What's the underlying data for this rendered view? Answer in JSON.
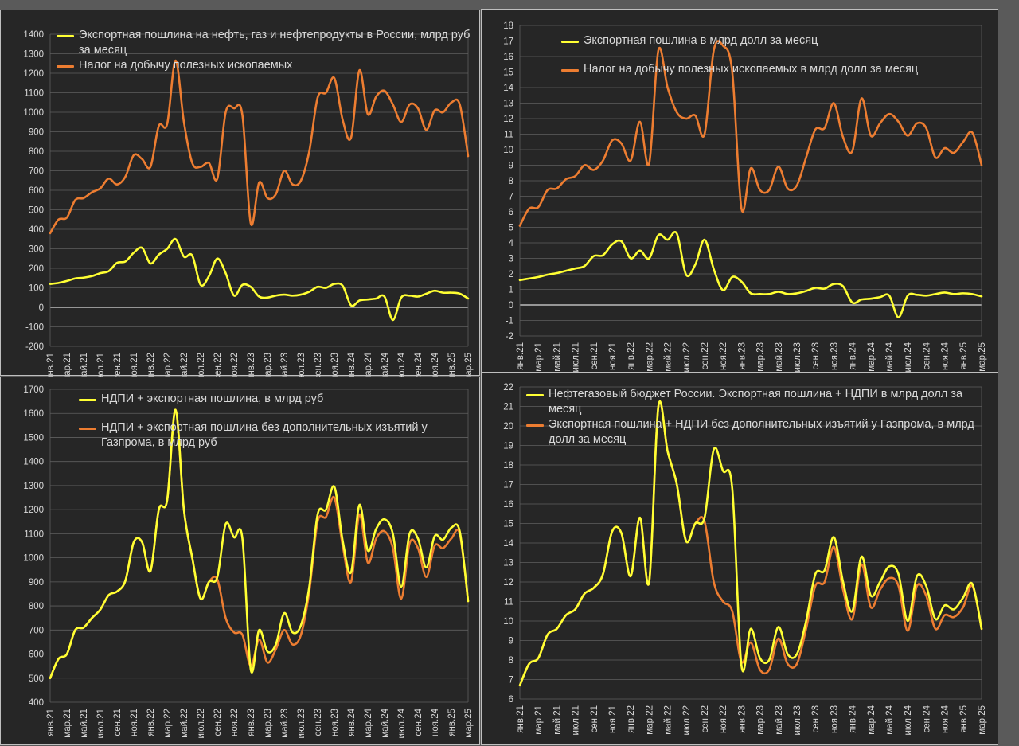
{
  "colors": {
    "yellow": "#ffff33",
    "orange": "#ed7d31",
    "grid": "#5f5f5f",
    "axis_text": "#d9d9d9",
    "zero_line": "#d9d9d9"
  },
  "x_labels": [
    "янв.21",
    "мар.21",
    "май.21",
    "июл.21",
    "сен.21",
    "ноя.21",
    "янв.22",
    "мар.22",
    "май.22",
    "июл.22",
    "сен.22",
    "ноя.22",
    "янв.23",
    "мар.23",
    "май.23",
    "июл.23",
    "сен.23",
    "ноя.23",
    "янв.24",
    "мар.24",
    "май.24",
    "июл.24",
    "сен.24",
    "ноя.24",
    "янв.25",
    "мар.25"
  ],
  "chart_data": [
    {
      "type": "line",
      "ylim": [
        -200,
        1400
      ],
      "ystep": 100,
      "xlabel": "",
      "ylabel": "",
      "x": [
        "янв.21",
        "фев.21",
        "мар.21",
        "апр.21",
        "май.21",
        "июн.21",
        "июл.21",
        "авг.21",
        "сен.21",
        "окт.21",
        "ноя.21",
        "дек.21",
        "янв.22",
        "фев.22",
        "мар.22",
        "апр.22",
        "май.22",
        "июн.22",
        "июл.22",
        "авг.22",
        "сен.22",
        "окт.22",
        "ноя.22",
        "дек.22",
        "янв.23",
        "фев.23",
        "мар.23",
        "апр.23",
        "май.23",
        "июн.23",
        "июл.23",
        "авг.23",
        "сен.23",
        "окт.23",
        "ноя.23",
        "дек.23",
        "янв.24",
        "фев.24",
        "мар.24",
        "апр.24",
        "май.24",
        "июн.24",
        "июл.24",
        "авг.24",
        "сен.24",
        "окт.24",
        "ноя.24",
        "дек.24",
        "янв.25",
        "фев.25",
        "мар.25"
      ],
      "series": [
        {
          "name": "Экспортная пошлина на нефть, газ и нефтепродукты в России, млрд руб за месяц",
          "color": "yellow",
          "values": [
            120,
            125,
            135,
            148,
            152,
            160,
            175,
            185,
            228,
            235,
            280,
            305,
            225,
            270,
            300,
            350,
            260,
            265,
            115,
            160,
            250,
            175,
            60,
            115,
            105,
            55,
            50,
            60,
            65,
            60,
            65,
            80,
            105,
            100,
            120,
            110,
            10,
            35,
            40,
            45,
            55,
            -65,
            50,
            60,
            55,
            70,
            85,
            75,
            75,
            70,
            45
          ]
        },
        {
          "name": "Налог на добычу полезных ископаемых",
          "color": "orange",
          "values": [
            380,
            450,
            460,
            550,
            560,
            590,
            610,
            660,
            630,
            670,
            780,
            760,
            720,
            930,
            940,
            1265,
            950,
            740,
            720,
            740,
            660,
            1000,
            1020,
            985,
            430,
            640,
            560,
            580,
            700,
            630,
            650,
            800,
            1075,
            1100,
            1175,
            960,
            870,
            1215,
            990,
            1080,
            1110,
            1040,
            950,
            1040,
            1020,
            910,
            1010,
            1000,
            1050,
            1040,
            775
          ]
        }
      ]
    },
    {
      "type": "line",
      "ylim": [
        -2,
        18
      ],
      "ystep": 1,
      "xlabel": "",
      "ylabel": "",
      "x": [
        "янв.21",
        "фев.21",
        "мар.21",
        "апр.21",
        "май.21",
        "июн.21",
        "июл.21",
        "авг.21",
        "сен.21",
        "окт.21",
        "ноя.21",
        "дек.21",
        "янв.22",
        "фев.22",
        "мар.22",
        "апр.22",
        "май.22",
        "июн.22",
        "июл.22",
        "авг.22",
        "сен.22",
        "окт.22",
        "ноя.22",
        "дек.22",
        "янв.23",
        "фев.23",
        "мар.23",
        "апр.23",
        "май.23",
        "июн.23",
        "июл.23",
        "авг.23",
        "сен.23",
        "окт.23",
        "ноя.23",
        "дек.23",
        "янв.24",
        "фев.24",
        "мар.24",
        "апр.24",
        "май.24",
        "июн.24",
        "июл.24",
        "авг.24",
        "сен.24",
        "окт.24",
        "ноя.24",
        "дек.24",
        "янв.25",
        "фев.25",
        "мар.25"
      ],
      "series": [
        {
          "name": "Экспортная пошлина в млрд долл за месяц",
          "color": "yellow",
          "values": [
            1.6,
            1.7,
            1.8,
            1.95,
            2.05,
            2.2,
            2.35,
            2.5,
            3.15,
            3.2,
            3.9,
            4.1,
            3.0,
            3.5,
            3.0,
            4.5,
            4.2,
            4.6,
            1.95,
            2.6,
            4.2,
            2.3,
            0.95,
            1.8,
            1.5,
            0.75,
            0.7,
            0.7,
            0.85,
            0.7,
            0.75,
            0.9,
            1.1,
            1.05,
            1.35,
            1.2,
            0.15,
            0.35,
            0.4,
            0.5,
            0.6,
            -0.8,
            0.6,
            0.65,
            0.6,
            0.7,
            0.8,
            0.7,
            0.75,
            0.7,
            0.55
          ]
        },
        {
          "name": "Налог на добычу полезных ископаемых в млрд долл за месяц",
          "color": "orange",
          "values": [
            5.1,
            6.2,
            6.3,
            7.4,
            7.5,
            8.1,
            8.3,
            9.0,
            8.7,
            9.3,
            10.6,
            10.4,
            9.3,
            11.8,
            9.1,
            16.4,
            14.0,
            12.4,
            12.0,
            12.2,
            11.0,
            16.4,
            16.7,
            15.0,
            6.2,
            8.8,
            7.4,
            7.4,
            8.9,
            7.5,
            7.7,
            9.5,
            11.3,
            11.4,
            13.0,
            10.8,
            9.9,
            13.3,
            10.9,
            11.7,
            12.3,
            11.8,
            10.9,
            11.7,
            11.4,
            9.5,
            10.1,
            9.8,
            10.5,
            11.1,
            9.0
          ]
        }
      ]
    },
    {
      "type": "line",
      "ylim": [
        400,
        1700
      ],
      "ystep": 100,
      "xlabel": "",
      "ylabel": "",
      "x": [
        "янв.21",
        "фев.21",
        "мар.21",
        "апр.21",
        "май.21",
        "июн.21",
        "июл.21",
        "авг.21",
        "сен.21",
        "окт.21",
        "ноя.21",
        "дек.21",
        "янв.22",
        "фев.22",
        "мар.22",
        "апр.22",
        "май.22",
        "июн.22",
        "июл.22",
        "авг.22",
        "сен.22",
        "окт.22",
        "ноя.22",
        "дек.22",
        "янв.23",
        "фев.23",
        "мар.23",
        "апр.23",
        "май.23",
        "июн.23",
        "июл.23",
        "авг.23",
        "сен.23",
        "окт.23",
        "ноя.23",
        "дек.23",
        "янв.24",
        "фев.24",
        "мар.24",
        "апр.24",
        "май.24",
        "июн.24",
        "июл.24",
        "авг.24",
        "сен.24",
        "окт.24",
        "ноя.24",
        "дек.24",
        "янв.25",
        "фев.25",
        "мар.25"
      ],
      "series": [
        {
          "name": "НДПИ + экспортная пошлина, в млрд руб",
          "color": "yellow",
          "values": [
            500,
            580,
            600,
            700,
            710,
            750,
            785,
            845,
            860,
            905,
            1065,
            1065,
            945,
            1200,
            1240,
            1615,
            1200,
            1000,
            830,
            900,
            920,
            1140,
            1085,
            1080,
            535,
            700,
            610,
            640,
            770,
            690,
            720,
            880,
            1180,
            1200,
            1295,
            1070,
            940,
            1220,
            1030,
            1120,
            1160,
            1100,
            880,
            1100,
            1080,
            960,
            1090,
            1075,
            1125,
            1110,
            820
          ]
        },
        {
          "name": "НДПИ + экспортная пошлина без дополнительных изъятий у Газпрома, в млрд руб",
          "color": "orange",
          "values": [
            500,
            580,
            600,
            700,
            710,
            750,
            785,
            845,
            860,
            905,
            1065,
            1065,
            945,
            1200,
            1240,
            1615,
            1200,
            1000,
            830,
            900,
            910,
            750,
            690,
            680,
            550,
            660,
            565,
            620,
            700,
            640,
            680,
            860,
            1150,
            1170,
            1250,
            1050,
            900,
            1180,
            980,
            1080,
            1110,
            1040,
            830,
            1060,
            1040,
            920,
            1050,
            1040,
            1080,
            1100,
            820
          ]
        }
      ]
    },
    {
      "type": "line",
      "ylim": [
        6,
        22
      ],
      "ystep": 1,
      "xlabel": "",
      "ylabel": "",
      "x": [
        "янв.21",
        "фев.21",
        "мар.21",
        "апр.21",
        "май.21",
        "июн.21",
        "июл.21",
        "авг.21",
        "сен.21",
        "окт.21",
        "ноя.21",
        "дек.21",
        "янв.22",
        "фев.22",
        "мар.22",
        "апр.22",
        "май.22",
        "июн.22",
        "июл.22",
        "авг.22",
        "сен.22",
        "окт.22",
        "ноя.22",
        "дек.22",
        "янв.23",
        "фев.23",
        "мар.23",
        "апр.23",
        "май.23",
        "июн.23",
        "июл.23",
        "авг.23",
        "сен.23",
        "окт.23",
        "ноя.23",
        "дек.23",
        "янв.24",
        "фев.24",
        "мар.24",
        "апр.24",
        "май.24",
        "июн.24",
        "июл.24",
        "авг.24",
        "сен.24",
        "окт.24",
        "ноя.24",
        "дек.24",
        "янв.25",
        "фев.25",
        "мар.25"
      ],
      "series": [
        {
          "name": "Нефтегазовый бюджет России. Экспортная пошлина + НДПИ в млрд долл за месяц",
          "color": "yellow",
          "values": [
            6.7,
            7.8,
            8.1,
            9.3,
            9.6,
            10.3,
            10.6,
            11.4,
            11.7,
            12.4,
            14.6,
            14.5,
            12.3,
            15.3,
            12.0,
            21.0,
            18.7,
            17.0,
            14.1,
            15.0,
            15.3,
            18.8,
            17.7,
            16.8,
            7.7,
            9.6,
            8.1,
            8.0,
            9.7,
            8.3,
            8.3,
            10.0,
            12.4,
            12.6,
            14.3,
            12.0,
            10.5,
            13.3,
            11.3,
            12.0,
            12.8,
            12.4,
            10.0,
            12.3,
            11.8,
            10.1,
            10.8,
            10.6,
            11.2,
            11.9,
            9.6
          ]
        },
        {
          "name": "Экспортная пошлина + НДПИ без дополнительных изъятий у Газпрома, в млрд долл за месяц",
          "color": "orange",
          "values": [
            6.7,
            7.8,
            8.1,
            9.3,
            9.6,
            10.3,
            10.6,
            11.4,
            11.7,
            12.4,
            14.6,
            14.5,
            12.3,
            15.3,
            12.0,
            21.0,
            18.7,
            17.0,
            14.1,
            15.0,
            15.1,
            12.0,
            11.0,
            10.5,
            7.9,
            8.9,
            7.5,
            7.5,
            9.1,
            7.8,
            7.8,
            9.6,
            11.8,
            12.0,
            13.8,
            11.6,
            10.1,
            12.9,
            10.7,
            11.6,
            12.2,
            11.8,
            9.5,
            11.8,
            11.3,
            9.6,
            10.3,
            10.2,
            10.7,
            11.8,
            9.6
          ]
        }
      ]
    }
  ]
}
